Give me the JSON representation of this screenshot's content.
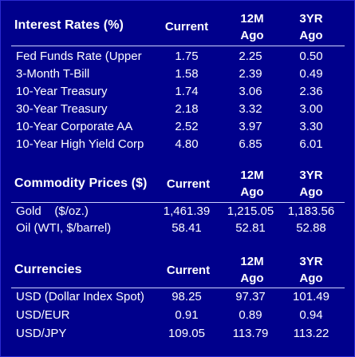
{
  "sections": [
    {
      "title": "Interest Rates (%)",
      "col_current": "Current",
      "col_12m_top": "12M",
      "col_12m_bottom": "Ago",
      "col_3yr_top": "3YR",
      "col_3yr_bottom": "Ago",
      "rows": [
        {
          "label": "Fed Funds Rate (Upper",
          "current": "1.75",
          "m12": "2.25",
          "yr3": "0.50"
        },
        {
          "label": "3-Month T-Bill",
          "current": "1.58",
          "m12": "2.39",
          "yr3": "0.49"
        },
        {
          "label": "10-Year Treasury",
          "current": "1.74",
          "m12": "3.06",
          "yr3": "2.36"
        },
        {
          "label": "30-Year Treasury",
          "current": "2.18",
          "m12": "3.32",
          "yr3": "3.00"
        },
        {
          "label": "10-Year Corporate AA",
          "current": "2.52",
          "m12": "3.97",
          "yr3": "3.30"
        },
        {
          "label": "10-Year High Yield Corp",
          "current": "4.80",
          "m12": "6.85",
          "yr3": "6.01"
        }
      ]
    },
    {
      "title": "Commodity Prices ($)",
      "col_current": "Current",
      "col_12m_top": "12M",
      "col_12m_bottom": "Ago",
      "col_3yr_top": "3YR",
      "col_3yr_bottom": "Ago",
      "rows": [
        {
          "label": "Gold    ($/oz.)",
          "current": "1,461.39",
          "m12": "1,215.05",
          "yr3": "1,183.56"
        },
        {
          "label": "Oil (WTI, $/barrel)",
          "current": "58.41",
          "m12": "52.81",
          "yr3": "52.88"
        }
      ]
    },
    {
      "title": "Currencies",
      "col_current": "Current",
      "col_12m_top": "12M",
      "col_12m_bottom": "Ago",
      "col_3yr_top": "3YR",
      "col_3yr_bottom": "Ago",
      "rows": [
        {
          "label": "USD (Dollar Index Spot)",
          "current": "98.25",
          "m12": "97.37",
          "yr3": "101.49"
        },
        {
          "label": "USD/EUR",
          "current": "0.91",
          "m12": "0.89",
          "yr3": "0.94"
        },
        {
          "label": "USD/JPY",
          "current": "109.05",
          "m12": "113.79",
          "yr3": "113.22"
        }
      ]
    }
  ],
  "colors": {
    "background": "#00008c",
    "text": "#ffffff",
    "rule": "#cfd3ff"
  }
}
